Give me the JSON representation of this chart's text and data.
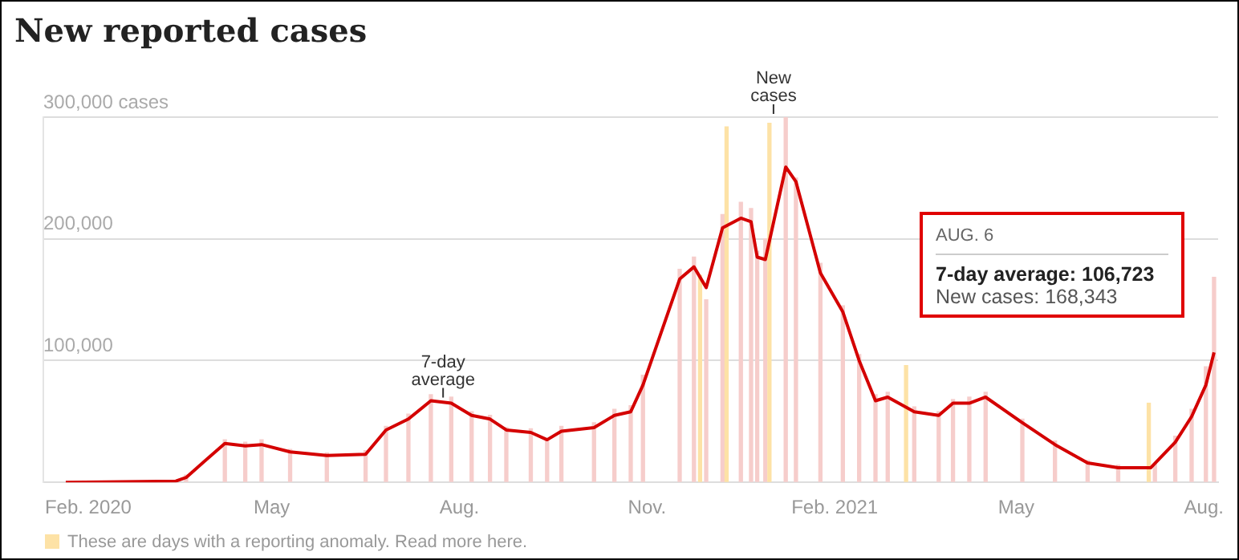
{
  "chart_data": {
    "type": "bar",
    "title": "New reported cases",
    "xlim": [
      "2020-01-10",
      "2021-08-08"
    ],
    "xticks": [
      {
        "value": "2020-02-01",
        "label": "Feb. 2020"
      },
      {
        "value": "2020-05-01",
        "label": "May"
      },
      {
        "value": "2020-08-01",
        "label": "Aug."
      },
      {
        "value": "2020-11-01",
        "label": "Nov."
      },
      {
        "value": "2021-02-01",
        "label": "Feb. 2021"
      },
      {
        "value": "2021-05-01",
        "label": "May"
      },
      {
        "value": "2021-08-01",
        "label": "Aug."
      }
    ],
    "ylim": [
      0,
      300000
    ],
    "yticks": [
      {
        "value": 0,
        "label": null
      },
      {
        "value": 100000,
        "label": "100,000"
      },
      {
        "value": 200000,
        "label": "200,000"
      },
      {
        "value": 300000,
        "label": "300,000 cases"
      }
    ],
    "grid": "y",
    "legend": false,
    "series": [
      {
        "x": [
          "2020-03-20",
          "2020-04-08",
          "2020-04-18",
          "2020-04-26",
          "2020-05-10",
          "2020-05-28",
          "2020-06-16",
          "2020-06-26",
          "2020-07-07",
          "2020-07-18",
          "2020-07-28",
          "2020-08-07",
          "2020-08-16",
          "2020-08-24",
          "2020-09-05",
          "2020-09-13",
          "2020-09-20",
          "2020-10-06",
          "2020-10-16",
          "2020-10-24",
          "2020-10-30",
          "2020-11-17",
          "2020-11-24",
          "2020-11-27",
          "2020-11-30",
          "2020-12-08",
          "2020-12-10",
          "2020-12-17",
          "2020-12-22",
          "2020-12-25",
          "2020-12-29",
          "2020-12-31",
          "2021-01-08",
          "2021-01-13",
          "2021-01-25",
          "2021-02-05",
          "2021-02-13",
          "2021-02-21",
          "2021-02-27",
          "2021-03-08",
          "2021-03-12",
          "2021-03-24",
          "2021-03-31",
          "2021-04-08",
          "2021-04-16",
          "2021-05-04",
          "2021-05-20",
          "2021-06-05",
          "2021-06-20",
          "2021-07-05",
          "2021-07-08",
          "2021-07-18",
          "2021-07-26",
          "2021-08-02",
          "2021-08-06"
        ],
        "values": [
          6000,
          35000,
          33000,
          35000,
          27000,
          24000,
          26000,
          46000,
          56000,
          72000,
          70000,
          58000,
          55000,
          45000,
          44000,
          36000,
          46000,
          49000,
          60000,
          63000,
          88000,
          175000,
          185000,
          170000,
          150000,
          220000,
          292000,
          230000,
          225000,
          190000,
          200000,
          295000,
          300000,
          250000,
          180000,
          145000,
          105000,
          72000,
          74000,
          96000,
          62000,
          58000,
          68000,
          70000,
          74000,
          52000,
          34000,
          18000,
          14000,
          65000,
          15000,
          38000,
          60000,
          95000,
          168343
        ],
        "colors": [
          "#f6cdcb",
          "#f6cdcb",
          "#f6cdcb",
          "#f6cdcb",
          "#f6cdcb",
          "#f6cdcb",
          "#f6cdcb",
          "#f6cdcb",
          "#f6cdcb",
          "#f6cdcb",
          "#f6cdcb",
          "#f6cdcb",
          "#f6cdcb",
          "#f6cdcb",
          "#f6cdcb",
          "#f6cdcb",
          "#f6cdcb",
          "#f6cdcb",
          "#f6cdcb",
          "#f6cdcb",
          "#f6cdcb",
          "#f6cdcb",
          "#f6cdcb",
          "#fde2a6",
          "#f6cdcb",
          "#f6cdcb",
          "#fde2a6",
          "#f6cdcb",
          "#f6cdcb",
          "#f6cdcb",
          "#f6cdcb",
          "#fde2a6",
          "#f6cdcb",
          "#f6cdcb",
          "#f6cdcb",
          "#f6cdcb",
          "#f6cdcb",
          "#f6cdcb",
          "#f6cdcb",
          "#fde2a6",
          "#f6cdcb",
          "#f6cdcb",
          "#f6cdcb",
          "#f6cdcb",
          "#f6cdcb",
          "#f6cdcb",
          "#f6cdcb",
          "#f6cdcb",
          "#f6cdcb",
          "#fde2a6",
          "#f6cdcb",
          "#f6cdcb",
          "#f6cdcb",
          "#f6cdcb",
          "#f6cdcb"
        ]
      },
      {
        "type": "line",
        "color": "#d40000",
        "x": [
          "2020-01-21",
          "2020-03-15",
          "2020-03-20",
          "2020-04-08",
          "2020-04-18",
          "2020-04-26",
          "2020-05-10",
          "2020-05-28",
          "2020-06-16",
          "2020-06-26",
          "2020-07-07",
          "2020-07-18",
          "2020-07-28",
          "2020-08-07",
          "2020-08-16",
          "2020-08-24",
          "2020-09-05",
          "2020-09-13",
          "2020-09-20",
          "2020-10-06",
          "2020-10-16",
          "2020-10-24",
          "2020-10-30",
          "2020-11-17",
          "2020-11-24",
          "2020-11-30",
          "2020-12-08",
          "2020-12-17",
          "2020-12-22",
          "2020-12-25",
          "2020-12-29",
          "2021-01-08",
          "2021-01-13",
          "2021-01-25",
          "2021-02-05",
          "2021-02-13",
          "2021-02-21",
          "2021-02-27",
          "2021-03-12",
          "2021-03-24",
          "2021-03-31",
          "2021-04-08",
          "2021-04-16",
          "2021-05-04",
          "2021-05-20",
          "2021-06-05",
          "2021-06-20",
          "2021-07-06",
          "2021-07-18",
          "2021-07-26",
          "2021-08-02",
          "2021-08-06"
        ],
        "values": [
          0,
          1000,
          4000,
          32000,
          30000,
          31000,
          25000,
          22000,
          23000,
          43000,
          52000,
          67000,
          65000,
          55000,
          52000,
          43000,
          41000,
          35000,
          42000,
          45000,
          55000,
          58000,
          80000,
          167000,
          177000,
          160000,
          209000,
          217000,
          214000,
          185000,
          183000,
          259000,
          247000,
          172000,
          140000,
          100000,
          67000,
          70000,
          58000,
          55000,
          65000,
          65000,
          70000,
          49000,
          31000,
          16000,
          12000,
          12000,
          33000,
          54000,
          80000,
          106723
        ]
      }
    ],
    "annotations": [
      {
        "text": "7-day average",
        "x": "2020-07-24",
        "y": 67000
      },
      {
        "text": "New cases",
        "x": "2021-01-02",
        "y": 300000
      },
      "AUG. 6",
      "7-day average: 106,723",
      "New cases: 168,343",
      "These are days with a reporting anomaly. Read more here."
    ]
  }
}
